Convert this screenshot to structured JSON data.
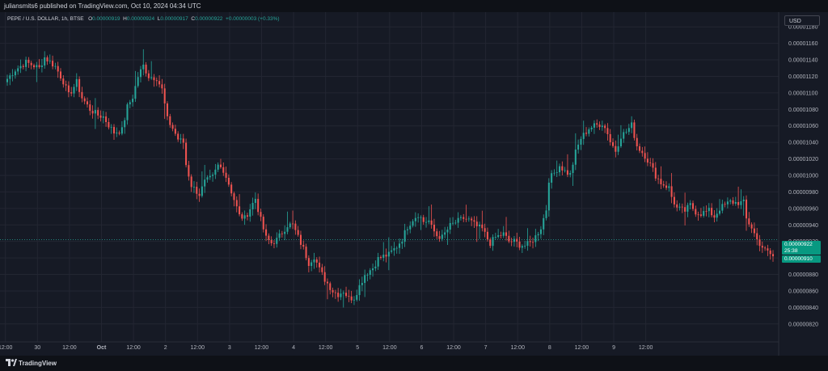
{
  "header": {
    "published_text": "juliansmits6 published on TradingView.com, Oct 10, 2024 04:34 UTC"
  },
  "legend": {
    "symbol": "PEPE / U.S. DOLLAR, 1h, BTSE",
    "o_label": "O",
    "o_value": "0.00000919",
    "h_label": "H",
    "h_value": "0.00000924",
    "l_label": "L",
    "l_value": "0.00000917",
    "c_label": "C",
    "c_value": "0.00000922",
    "change": "+0.00000003 (+0.33%)"
  },
  "currency_button": "USD",
  "price_tags": {
    "last_price": "0.00000922",
    "countdown": "25:38",
    "low_price": "0.00000910"
  },
  "footer": {
    "brand": "TradingView"
  },
  "colors": {
    "up": "#26a69a",
    "down": "#ef5350",
    "background": "#161a25",
    "grid": "#232632",
    "text": "#b2b5be",
    "last_price_tag": "#089981"
  },
  "icons": {
    "brand_logo": "tradingview-logo-icon"
  },
  "chart_data": {
    "type": "candlestick",
    "title": "PEPE / U.S. DOLLAR, 1h, BTSE",
    "xlabel": "",
    "ylabel": "",
    "ylim": [
      8.1e-06,
      1.19e-05
    ],
    "y_ticks": [
      "0.00001180",
      "0.00001160",
      "0.00001140",
      "0.00001120",
      "0.00001100",
      "0.00001080",
      "0.00001060",
      "0.00001040",
      "0.00001020",
      "0.00001000",
      "0.00000980",
      "0.00000960",
      "0.00000940",
      "0.00000920",
      "0.00000900",
      "0.00000880",
      "0.00000860",
      "0.00000840",
      "0.00000820"
    ],
    "x_ticks": [
      "12:00",
      "30",
      "12:00",
      "Oct",
      "12:00",
      "2",
      "12:00",
      "3",
      "12:00",
      "4",
      "12:00",
      "5",
      "12:00",
      "6",
      "12:00",
      "7",
      "12:00",
      "8",
      "12:00",
      "9",
      "12:00"
    ],
    "anchor_close_path": [
      [
        0,
        1117
      ],
      [
        3,
        1128
      ],
      [
        7,
        1137
      ],
      [
        12,
        1130
      ],
      [
        14,
        1143
      ],
      [
        18,
        1132
      ],
      [
        21,
        1114
      ],
      [
        23,
        1097
      ],
      [
        26,
        1113
      ],
      [
        28,
        1094
      ],
      [
        31,
        1080
      ],
      [
        34,
        1073
      ],
      [
        36,
        1071
      ],
      [
        38,
        1061
      ],
      [
        40,
        1052
      ],
      [
        43,
        1055
      ],
      [
        45,
        1083
      ],
      [
        47,
        1095
      ],
      [
        49,
        1120
      ],
      [
        51,
        1133
      ],
      [
        53,
        1120
      ],
      [
        56,
        1118
      ],
      [
        58,
        1104
      ],
      [
        60,
        1068
      ],
      [
        62,
        1057
      ],
      [
        64,
        1044
      ],
      [
        66,
        1040
      ],
      [
        67,
        1013
      ],
      [
        69,
        988
      ],
      [
        72,
        977
      ],
      [
        74,
        992
      ],
      [
        77,
        998
      ],
      [
        79,
        1012
      ],
      [
        81,
        1007
      ],
      [
        83,
        990
      ],
      [
        85,
        971
      ],
      [
        87,
        951
      ],
      [
        89,
        948
      ],
      [
        91,
        960
      ],
      [
        93,
        972
      ],
      [
        95,
        946
      ],
      [
        97,
        924
      ],
      [
        99,
        918
      ],
      [
        101,
        922
      ],
      [
        103,
        931
      ],
      [
        105,
        940
      ],
      [
        107,
        940
      ],
      [
        109,
        925
      ],
      [
        111,
        911
      ],
      [
        113,
        894
      ],
      [
        115,
        902
      ],
      [
        117,
        886
      ],
      [
        119,
        874
      ],
      [
        122,
        860
      ],
      [
        124,
        856
      ],
      [
        126,
        860
      ],
      [
        128,
        851
      ],
      [
        130,
        852
      ],
      [
        132,
        866
      ],
      [
        134,
        880
      ],
      [
        137,
        888
      ],
      [
        139,
        899
      ],
      [
        141,
        902
      ],
      [
        143,
        904
      ],
      [
        146,
        914
      ],
      [
        148,
        923
      ],
      [
        150,
        938
      ],
      [
        152,
        947
      ],
      [
        154,
        953
      ],
      [
        156,
        944
      ],
      [
        158,
        945
      ],
      [
        159,
        937
      ],
      [
        161,
        927
      ],
      [
        163,
        925
      ],
      [
        166,
        939
      ],
      [
        168,
        943
      ],
      [
        171,
        948
      ],
      [
        173,
        946
      ],
      [
        176,
        938
      ],
      [
        178,
        935
      ],
      [
        180,
        923
      ],
      [
        181,
        918
      ],
      [
        183,
        925
      ],
      [
        186,
        929
      ],
      [
        188,
        920
      ],
      [
        190,
        920
      ],
      [
        192,
        916
      ],
      [
        194,
        915
      ],
      [
        196,
        918
      ],
      [
        198,
        926
      ],
      [
        200,
        937
      ],
      [
        202,
        959
      ],
      [
        203,
        995
      ],
      [
        205,
        1003
      ],
      [
        207,
        1012
      ],
      [
        209,
        1005
      ],
      [
        211,
        1001
      ],
      [
        213,
        1028
      ],
      [
        215,
        1045
      ],
      [
        218,
        1057
      ],
      [
        220,
        1060
      ],
      [
        223,
        1063
      ],
      [
        225,
        1052
      ],
      [
        226,
        1041
      ],
      [
        228,
        1030
      ],
      [
        230,
        1048
      ],
      [
        232,
        1053
      ],
      [
        234,
        1061
      ],
      [
        236,
        1036
      ],
      [
        239,
        1024
      ],
      [
        241,
        1013
      ],
      [
        243,
        1000
      ],
      [
        245,
        991
      ],
      [
        246,
        989
      ],
      [
        248,
        985
      ],
      [
        249,
        974
      ],
      [
        251,
        960
      ],
      [
        254,
        957
      ],
      [
        256,
        964
      ],
      [
        258,
        956
      ],
      [
        260,
        954
      ],
      [
        263,
        957
      ],
      [
        265,
        950
      ],
      [
        267,
        960
      ],
      [
        269,
        964
      ],
      [
        271,
        968
      ],
      [
        273,
        967
      ],
      [
        276,
        967
      ],
      [
        277,
        947
      ],
      [
        279,
        937
      ],
      [
        281,
        922
      ],
      [
        284,
        909
      ],
      [
        285,
        907
      ],
      [
        287,
        902
      ]
    ]
  }
}
